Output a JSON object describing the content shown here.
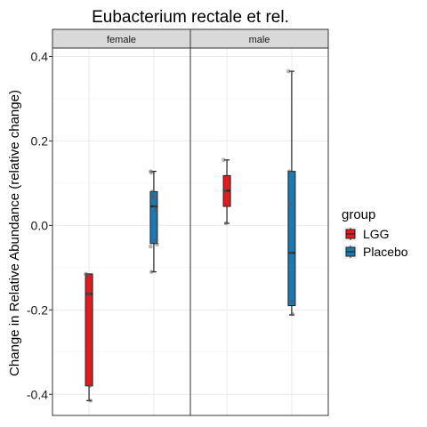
{
  "chart_data": {
    "type": "box",
    "title": "Eubacterium rectale et rel.",
    "ylabel": "Change in Relative Abundance (relative change)",
    "xlabel": "",
    "ylim": [
      -0.45,
      0.42
    ],
    "yticks": [
      -0.4,
      -0.2,
      0.0,
      0.2,
      0.4
    ],
    "ytick_labels": [
      "-0.4",
      "-0.2",
      "0.0",
      "0.2",
      "0.4"
    ],
    "grid": true,
    "legend_position": "right",
    "legend": {
      "title": "group",
      "items": [
        {
          "name": "LGG",
          "color": "#e41a1c"
        },
        {
          "name": "Placebo",
          "color": "#1f78b4"
        }
      ]
    },
    "panels": [
      {
        "label": "female",
        "boxes": [
          {
            "group": "LGG",
            "min": -0.415,
            "q1": -0.38,
            "median": -0.162,
            "q3": -0.115,
            "max": -0.115,
            "points": [
              -0.115,
              -0.117,
              -0.118,
              -0.162,
              -0.163,
              -0.38,
              -0.415
            ]
          },
          {
            "group": "Placebo",
            "min": -0.11,
            "q1": -0.043,
            "median": 0.045,
            "q3": 0.08,
            "max": 0.128,
            "points": [
              0.128,
              0.125,
              0.08,
              0.07,
              0.065,
              0.045,
              0.035,
              -0.035,
              -0.045,
              -0.05,
              -0.11
            ]
          }
        ]
      },
      {
        "label": "male",
        "boxes": [
          {
            "group": "LGG",
            "min": 0.005,
            "q1": 0.045,
            "median": 0.082,
            "q3": 0.118,
            "max": 0.155,
            "points": [
              0.155,
              0.085,
              0.08,
              0.005
            ]
          },
          {
            "group": "Placebo",
            "min": -0.212,
            "q1": -0.19,
            "median": -0.065,
            "q3": 0.128,
            "max": 0.365,
            "points": [
              0.365,
              0.128,
              0.05,
              -0.065,
              -0.18,
              -0.21
            ]
          }
        ]
      }
    ]
  }
}
